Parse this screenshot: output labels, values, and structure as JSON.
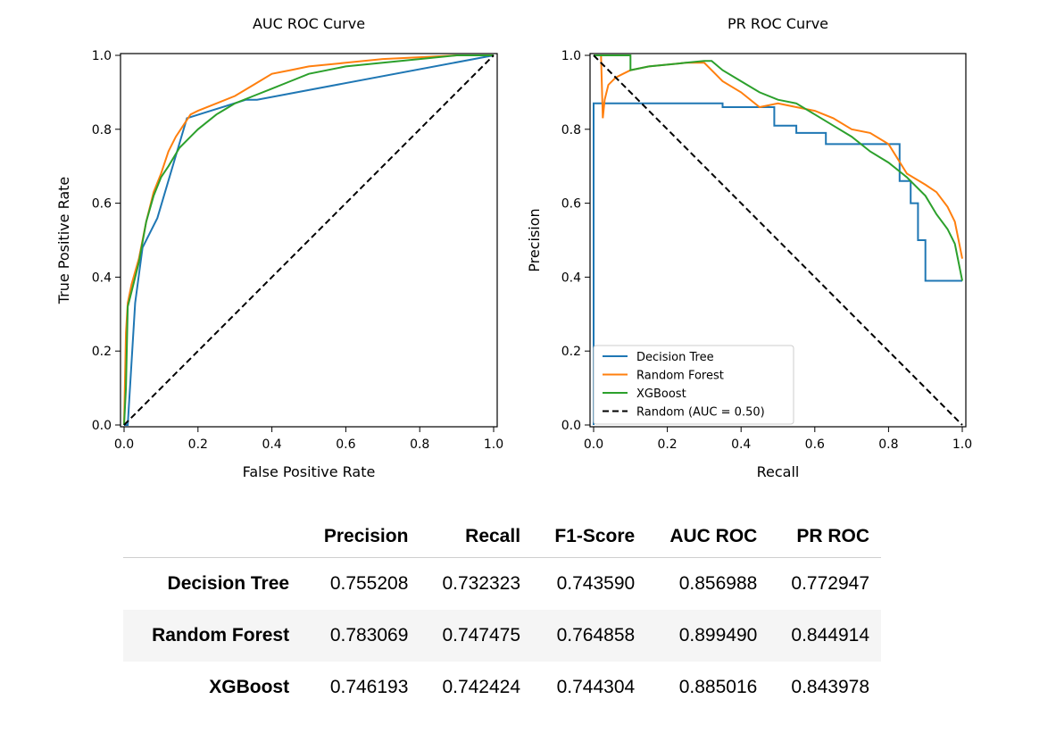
{
  "palette": {
    "dt": "#1f77b4",
    "rf": "#ff7f0e",
    "xgb": "#2ca02c",
    "random": "#000000"
  },
  "chart_data": [
    {
      "type": "line",
      "title": "AUC ROC Curve",
      "xlabel": "False Positive Rate",
      "ylabel": "True Positive Rate",
      "xlim": [
        0,
        1
      ],
      "ylim": [
        0,
        1
      ],
      "xticks": [
        "0.0",
        "0.2",
        "0.4",
        "0.6",
        "0.8",
        "1.0"
      ],
      "yticks": [
        "0.0",
        "0.2",
        "0.4",
        "0.6",
        "0.8",
        "1.0"
      ],
      "grid": false,
      "series": [
        {
          "name": "Decision Tree",
          "color": "#1f77b4",
          "style": "solid",
          "x": [
            0,
            0.01,
            0.03,
            0.05,
            0.09,
            0.17,
            0.33,
            0.36,
            1.0
          ],
          "y": [
            0,
            0.0,
            0.33,
            0.48,
            0.56,
            0.83,
            0.88,
            0.88,
            1.0
          ]
        },
        {
          "name": "Random Forest",
          "color": "#ff7f0e",
          "style": "solid",
          "x": [
            0,
            0.005,
            0.01,
            0.02,
            0.04,
            0.06,
            0.08,
            0.1,
            0.12,
            0.14,
            0.16,
            0.18,
            0.2,
            0.25,
            0.3,
            0.35,
            0.4,
            0.45,
            0.5,
            0.6,
            0.7,
            0.8,
            0.9,
            1.0
          ],
          "y": [
            0,
            0.25,
            0.33,
            0.38,
            0.45,
            0.55,
            0.63,
            0.68,
            0.74,
            0.78,
            0.81,
            0.84,
            0.85,
            0.87,
            0.89,
            0.92,
            0.95,
            0.96,
            0.97,
            0.98,
            0.99,
            0.995,
            1.0,
            1.0
          ]
        },
        {
          "name": "XGBoost",
          "color": "#2ca02c",
          "style": "solid",
          "x": [
            0,
            0.005,
            0.01,
            0.02,
            0.04,
            0.06,
            0.08,
            0.1,
            0.12,
            0.15,
            0.18,
            0.2,
            0.25,
            0.3,
            0.35,
            0.4,
            0.45,
            0.5,
            0.6,
            0.7,
            0.8,
            0.9,
            1.0
          ],
          "y": [
            0,
            0.1,
            0.32,
            0.36,
            0.44,
            0.55,
            0.62,
            0.67,
            0.7,
            0.75,
            0.78,
            0.8,
            0.84,
            0.87,
            0.89,
            0.91,
            0.93,
            0.95,
            0.97,
            0.98,
            0.99,
            1.0,
            1.0
          ]
        },
        {
          "name": "Random (AUC = 0.50)",
          "color": "#000000",
          "style": "dashed",
          "x": [
            0,
            1
          ],
          "y": [
            0,
            1
          ]
        }
      ]
    },
    {
      "type": "line",
      "title": "PR ROC Curve",
      "xlabel": "Recall",
      "ylabel": "Precision",
      "xlim": [
        0,
        1
      ],
      "ylim": [
        0,
        1
      ],
      "xticks": [
        "0.0",
        "0.2",
        "0.4",
        "0.6",
        "0.8",
        "1.0"
      ],
      "yticks": [
        "0.0",
        "0.2",
        "0.4",
        "0.6",
        "0.8",
        "1.0"
      ],
      "grid": false,
      "legend": "lower-left",
      "series": [
        {
          "name": "Decision Tree",
          "color": "#1f77b4",
          "style": "solid",
          "x": [
            0.0,
            0.0,
            0.0,
            0.35,
            0.35,
            0.49,
            0.49,
            0.55,
            0.55,
            0.63,
            0.63,
            0.83,
            0.83,
            0.86,
            0.86,
            0.88,
            0.88,
            0.9,
            0.9,
            1.0
          ],
          "y": [
            0.0,
            0.0,
            0.87,
            0.87,
            0.86,
            0.86,
            0.81,
            0.81,
            0.79,
            0.79,
            0.76,
            0.76,
            0.66,
            0.66,
            0.6,
            0.6,
            0.5,
            0.5,
            0.39,
            0.39
          ]
        },
        {
          "name": "Random Forest",
          "color": "#ff7f0e",
          "style": "solid",
          "x": [
            0.0,
            0.02,
            0.025,
            0.03,
            0.04,
            0.06,
            0.08,
            0.1,
            0.15,
            0.2,
            0.25,
            0.3,
            0.33,
            0.35,
            0.4,
            0.45,
            0.5,
            0.55,
            0.6,
            0.65,
            0.7,
            0.75,
            0.8,
            0.85,
            0.9,
            0.93,
            0.96,
            0.98,
            1.0
          ],
          "y": [
            1.0,
            1.0,
            0.83,
            0.88,
            0.92,
            0.94,
            0.95,
            0.96,
            0.97,
            0.975,
            0.98,
            0.98,
            0.95,
            0.93,
            0.9,
            0.86,
            0.87,
            0.86,
            0.85,
            0.83,
            0.8,
            0.79,
            0.76,
            0.68,
            0.65,
            0.63,
            0.59,
            0.55,
            0.45
          ]
        },
        {
          "name": "XGBoost",
          "color": "#2ca02c",
          "style": "solid",
          "x": [
            0.0,
            0.1,
            0.1,
            0.15,
            0.2,
            0.25,
            0.3,
            0.32,
            0.35,
            0.4,
            0.45,
            0.5,
            0.55,
            0.6,
            0.65,
            0.7,
            0.75,
            0.8,
            0.85,
            0.9,
            0.93,
            0.96,
            0.98,
            1.0
          ],
          "y": [
            1.0,
            1.0,
            0.96,
            0.97,
            0.975,
            0.98,
            0.985,
            0.985,
            0.96,
            0.93,
            0.9,
            0.88,
            0.87,
            0.84,
            0.81,
            0.78,
            0.74,
            0.71,
            0.67,
            0.62,
            0.57,
            0.53,
            0.49,
            0.39
          ]
        },
        {
          "name": "Random (AUC = 0.50)",
          "color": "#000000",
          "style": "dashed",
          "x": [
            0,
            1
          ],
          "y": [
            1,
            0
          ]
        }
      ]
    }
  ],
  "table": {
    "columns": [
      "",
      "Precision",
      "Recall",
      "F1-Score",
      "AUC ROC",
      "PR ROC"
    ],
    "rows": [
      {
        "model": "Decision Tree",
        "precision": "0.755208",
        "recall": "0.732323",
        "f1": "0.743590",
        "auc_roc": "0.856988",
        "pr_roc": "0.772947"
      },
      {
        "model": "Random Forest",
        "precision": "0.783069",
        "recall": "0.747475",
        "f1": "0.764858",
        "auc_roc": "0.899490",
        "pr_roc": "0.844914"
      },
      {
        "model": "XGBoost",
        "precision": "0.746193",
        "recall": "0.742424",
        "f1": "0.744304",
        "auc_roc": "0.885016",
        "pr_roc": "0.843978"
      }
    ]
  }
}
